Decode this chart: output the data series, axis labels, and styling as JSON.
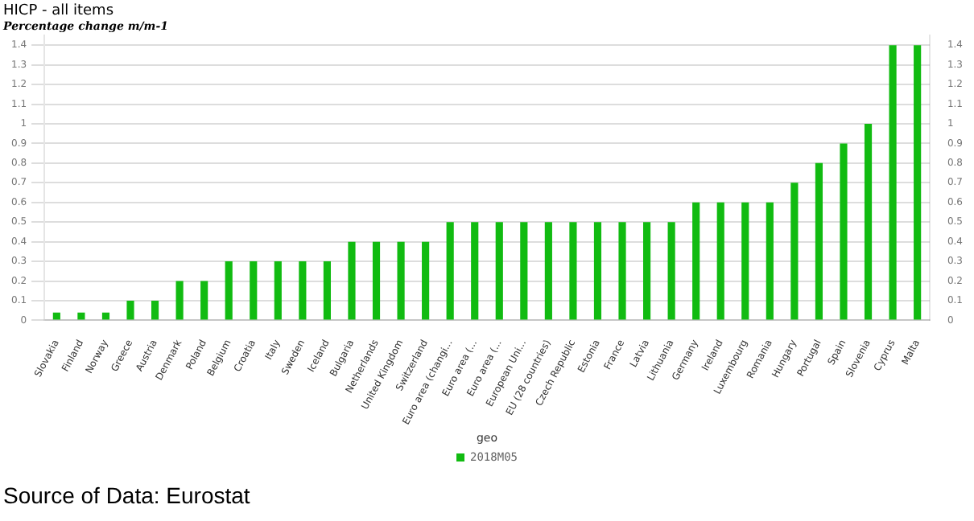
{
  "chart_data": {
    "type": "bar",
    "title": "HICP - all items",
    "subtitle": "Percentage change m/m-1",
    "xlabel": "geo",
    "categories": [
      "Slovakia",
      "Finland",
      "Norway",
      "Greece",
      "Austria",
      "Denmark",
      "Poland",
      "Belgium",
      "Croatia",
      "Italy",
      "Sweden",
      "Iceland",
      "Bulgaria",
      "Netherlands",
      "United Kingdom",
      "Switzerland",
      "Euro area (changi...",
      "Euro area (...",
      "Euro area (...",
      "European Uni...",
      "EU (28 countries)",
      "Czech Republic",
      "Estonia",
      "France",
      "Latvia",
      "Lithuania",
      "Germany",
      "Ireland",
      "Luxembourg",
      "Romania",
      "Hungary",
      "Portugal",
      "Spain",
      "Slovenia",
      "Cyprus",
      "Malta"
    ],
    "series": [
      {
        "name": "2018M05",
        "color": "#11bb11",
        "values": [
          0.04,
          0.04,
          0.04,
          0.1,
          0.1,
          0.2,
          0.2,
          0.3,
          0.3,
          0.3,
          0.3,
          0.3,
          0.4,
          0.4,
          0.4,
          0.4,
          0.5,
          0.5,
          0.5,
          0.5,
          0.5,
          0.5,
          0.5,
          0.5,
          0.5,
          0.5,
          0.6,
          0.6,
          0.6,
          0.6,
          0.7,
          0.8,
          0.9,
          1.0,
          1.4,
          1.4
        ]
      }
    ],
    "ylim": [
      0,
      1.45
    ],
    "yticks": [
      0,
      0.1,
      0.2,
      0.3,
      0.4,
      0.5,
      0.6,
      0.7,
      0.8,
      0.9,
      1,
      1.1,
      1.2,
      1.3,
      1.4
    ],
    "y2lim": [
      0,
      1.45
    ],
    "y2ticks": [
      0,
      0.1,
      0.2,
      0.3,
      0.4,
      0.5,
      0.6,
      0.7,
      0.8,
      0.9,
      1,
      1.1,
      1.2,
      1.3,
      1.4
    ],
    "grid": "y",
    "legend": "bottom",
    "annotations": [
      "Source of Data: Eurostat"
    ]
  }
}
